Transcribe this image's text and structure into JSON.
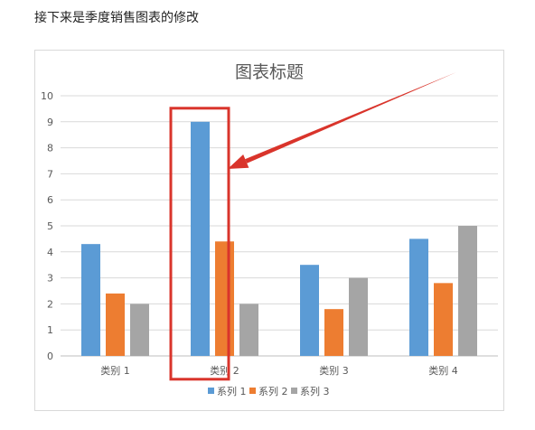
{
  "page": {
    "caption": "接下来是季度销售图表的修改"
  },
  "chart_data": {
    "type": "bar",
    "title": "图表标题",
    "categories": [
      "类别 1",
      "类别 2",
      "类别 3",
      "类别 4"
    ],
    "series": [
      {
        "name": "系列 1",
        "values": [
          4.3,
          9,
          3.5,
          4.5
        ],
        "color": "#5b9bd5"
      },
      {
        "name": "系列 2",
        "values": [
          2.4,
          4.4,
          1.8,
          2.8
        ],
        "color": "#ed7d31"
      },
      {
        "name": "系列 3",
        "values": [
          2,
          2,
          3,
          5
        ],
        "color": "#a5a5a5"
      }
    ],
    "ylim": [
      0,
      10
    ],
    "yticks": [
      "0",
      "1",
      "2",
      "3",
      "4",
      "5",
      "6",
      "7",
      "8",
      "9",
      "10"
    ],
    "xlabel": "",
    "ylabel": "",
    "grid": true,
    "legend_position": "bottom"
  },
  "annotations": {
    "highlight": {
      "category": "类别 2",
      "series": "系列 1",
      "color": "#d9342b"
    },
    "arrow_color": "#d9342b"
  }
}
